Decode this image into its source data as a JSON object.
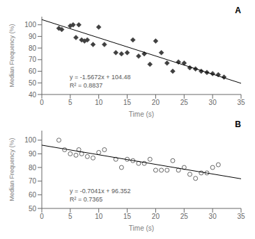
{
  "chart_data": [
    {
      "type": "scatter",
      "title": "A",
      "xlabel": "Time (s)",
      "ylabel": "Median Frequency (%)",
      "xlim": [
        0,
        35
      ],
      "ylim": [
        40,
        107
      ],
      "xticks": [
        0,
        5,
        10,
        15,
        20,
        25,
        30,
        35
      ],
      "yticks": [
        40,
        50,
        60,
        70,
        80,
        90,
        100
      ],
      "series": [
        {
          "type": "scatter",
          "marker": "diamond",
          "color": "#404040",
          "x": [
            3,
            3.5,
            5,
            5.5,
            6,
            6.5,
            7,
            7.5,
            8,
            9,
            10,
            11,
            13,
            14,
            15,
            16,
            17,
            18,
            19,
            20,
            21,
            22,
            23,
            24,
            25,
            26,
            27,
            28,
            29,
            30,
            31,
            32
          ],
          "values": [
            97,
            96,
            99,
            100,
            89,
            100,
            87,
            86,
            87,
            83,
            98,
            83,
            76,
            75,
            76,
            87,
            73,
            75,
            66,
            86,
            76,
            67,
            60,
            68,
            67,
            63,
            62,
            60,
            59,
            58,
            57,
            55
          ]
        },
        {
          "type": "line",
          "color": "#000000",
          "x": [
            0,
            35
          ],
          "values": [
            104.48,
            49.628
          ]
        }
      ],
      "annotations": [
        "y = -1.5672x + 104.48",
        "R² = 0.8837"
      ]
    },
    {
      "type": "scatter",
      "title": "B",
      "xlabel": "Time (s)",
      "ylabel": "Median Frequency (%)",
      "xlim": [
        0,
        35
      ],
      "ylim": [
        50,
        107
      ],
      "xticks": [
        0,
        5,
        10,
        15,
        20,
        25,
        30,
        35
      ],
      "yticks": [
        50,
        60,
        70,
        80,
        90,
        100
      ],
      "series": [
        {
          "type": "scatter",
          "marker": "open_circle",
          "color": "#404040",
          "x": [
            3,
            4,
            5,
            6,
            6.5,
            7,
            8,
            9,
            10,
            11,
            13,
            14,
            15,
            16,
            17,
            18,
            19,
            20,
            21,
            22,
            23,
            24,
            25,
            26,
            27,
            28,
            29,
            30,
            31
          ],
          "values": [
            100,
            93,
            90,
            89,
            93,
            90,
            88,
            87,
            91,
            93,
            86,
            80,
            86,
            85,
            83,
            83,
            86,
            78,
            78,
            78,
            85,
            78,
            80,
            75,
            72,
            76,
            76,
            80,
            82
          ]
        },
        {
          "type": "line",
          "color": "#000000",
          "x": [
            0,
            35
          ],
          "values": [
            96.352,
            71.7085
          ]
        }
      ],
      "annotations": [
        "y = -0.7041x + 96.352",
        "R² = 0.7365"
      ]
    }
  ]
}
